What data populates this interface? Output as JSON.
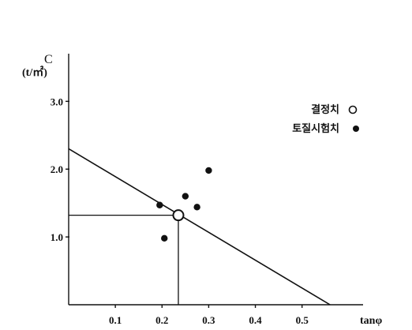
{
  "chart_data": {
    "type": "scatter",
    "ylabel": "C",
    "yunit": "(t/㎡)",
    "xlabel": "tanφ",
    "xlim": [
      0.0,
      0.58
    ],
    "ylim": [
      0.0,
      3.4
    ],
    "xticks": [
      {
        "value": 0.1,
        "label": "0.1"
      },
      {
        "value": 0.2,
        "label": "0.2"
      },
      {
        "value": 0.3,
        "label": "0.3"
      },
      {
        "value": 0.4,
        "label": "0.4"
      },
      {
        "value": 0.5,
        "label": "0.5"
      }
    ],
    "yticks": [
      {
        "value": 1.0,
        "label": "1.0"
      },
      {
        "value": 2.0,
        "label": "2.0"
      },
      {
        "value": 3.0,
        "label": "3.0"
      }
    ],
    "grid": false,
    "legend_position": "top-right",
    "series": [
      {
        "name": "결정치",
        "marker": "open-circle",
        "points": [
          {
            "x": 0.235,
            "y": 1.32
          }
        ]
      },
      {
        "name": "토질시험치",
        "marker": "filled-circle",
        "points": [
          {
            "x": 0.195,
            "y": 1.47
          },
          {
            "x": 0.205,
            "y": 0.98
          },
          {
            "x": 0.25,
            "y": 1.6
          },
          {
            "x": 0.275,
            "y": 1.44
          },
          {
            "x": 0.3,
            "y": 1.98
          }
        ]
      }
    ],
    "trend_line": {
      "points": [
        {
          "x": 0.0,
          "y": 2.3
        },
        {
          "x": 0.56,
          "y": 0.0
        }
      ]
    },
    "reference_lines": {
      "x": 0.235,
      "y": 1.32
    }
  }
}
